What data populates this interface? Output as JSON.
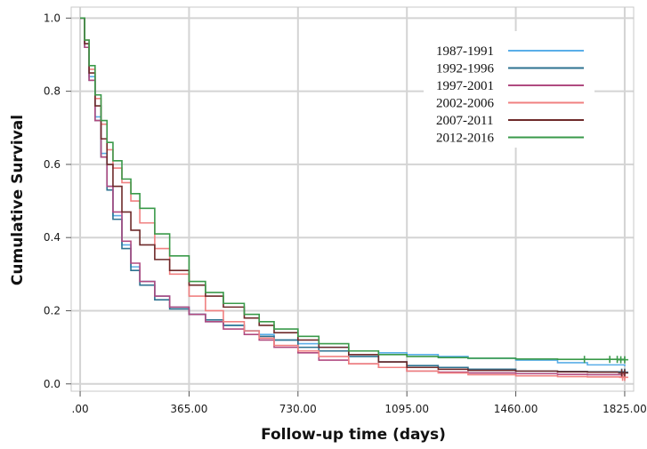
{
  "chart_data": {
    "type": "line",
    "xlabel": "Follow-up time (days)",
    "ylabel": "Cumulative Survival",
    "xlim": [
      -30,
      1855
    ],
    "ylim": [
      -0.02,
      1.03
    ],
    "x_ticks": [
      0,
      365,
      730,
      1095,
      1460,
      1825
    ],
    "x_tick_labels": [
      ".00",
      "365.00",
      "730.00",
      "1095.00",
      "1460.00",
      "1825.00"
    ],
    "y_ticks": [
      0.0,
      0.2,
      0.4,
      0.6,
      0.8,
      1.0
    ],
    "y_tick_labels": [
      "0.0",
      "0.2",
      "0.4",
      "0.6",
      "0.8",
      "1.0"
    ],
    "grid": true,
    "legend_position": "top-right",
    "series": [
      {
        "name": "1987-1991",
        "color": "#5aaee8",
        "x": [
          0,
          15,
          30,
          50,
          70,
          90,
          110,
          140,
          170,
          200,
          250,
          300,
          365,
          420,
          480,
          550,
          600,
          650,
          730,
          800,
          900,
          1000,
          1095,
          1200,
          1300,
          1460,
          1600,
          1700,
          1825
        ],
        "values": [
          1.0,
          0.93,
          0.84,
          0.73,
          0.63,
          0.54,
          0.46,
          0.38,
          0.32,
          0.28,
          0.24,
          0.21,
          0.19,
          0.17,
          0.16,
          0.145,
          0.135,
          0.12,
          0.11,
          0.1,
          0.09,
          0.085,
          0.08,
          0.075,
          0.07,
          0.065,
          0.058,
          0.052,
          0.048
        ]
      },
      {
        "name": "1992-1996",
        "color": "#2d7290",
        "x": [
          0,
          15,
          30,
          50,
          70,
          90,
          110,
          140,
          170,
          200,
          250,
          300,
          365,
          420,
          480,
          550,
          600,
          650,
          730,
          800,
          900,
          1000,
          1095,
          1200,
          1300,
          1460,
          1600,
          1700,
          1825
        ],
        "values": [
          1.0,
          0.92,
          0.83,
          0.72,
          0.62,
          0.53,
          0.45,
          0.37,
          0.31,
          0.27,
          0.23,
          0.205,
          0.19,
          0.175,
          0.16,
          0.145,
          0.13,
          0.12,
          0.1,
          0.09,
          0.075,
          0.06,
          0.05,
          0.045,
          0.04,
          0.035,
          0.034,
          0.033,
          0.032
        ]
      },
      {
        "name": "1997-2001",
        "color": "#b04a80",
        "x": [
          0,
          15,
          30,
          50,
          70,
          90,
          110,
          140,
          170,
          200,
          250,
          300,
          365,
          420,
          480,
          550,
          600,
          650,
          730,
          800,
          900,
          1000,
          1095,
          1200,
          1300,
          1460,
          1600,
          1700,
          1825
        ],
        "values": [
          1.0,
          0.92,
          0.83,
          0.72,
          0.62,
          0.54,
          0.47,
          0.39,
          0.33,
          0.28,
          0.24,
          0.21,
          0.19,
          0.17,
          0.15,
          0.135,
          0.12,
          0.1,
          0.085,
          0.065,
          0.055,
          0.045,
          0.035,
          0.032,
          0.03,
          0.028,
          0.026,
          0.025,
          0.025
        ]
      },
      {
        "name": "2002-2006",
        "color": "#f08080",
        "x": [
          0,
          15,
          30,
          50,
          70,
          90,
          110,
          140,
          170,
          200,
          250,
          300,
          365,
          420,
          480,
          550,
          600,
          650,
          730,
          800,
          900,
          1000,
          1095,
          1200,
          1300,
          1460,
          1600,
          1700,
          1825
        ],
        "values": [
          1.0,
          0.94,
          0.86,
          0.78,
          0.71,
          0.64,
          0.59,
          0.55,
          0.5,
          0.44,
          0.37,
          0.3,
          0.24,
          0.2,
          0.17,
          0.145,
          0.125,
          0.105,
          0.09,
          0.075,
          0.055,
          0.045,
          0.035,
          0.03,
          0.025,
          0.022,
          0.02,
          0.019,
          0.018
        ]
      },
      {
        "name": "2007-2011",
        "color": "#6e2a2a",
        "x": [
          0,
          15,
          30,
          50,
          70,
          90,
          110,
          140,
          170,
          200,
          250,
          300,
          365,
          420,
          480,
          550,
          600,
          650,
          730,
          800,
          900,
          1000,
          1095,
          1200,
          1300,
          1460,
          1600,
          1700,
          1825
        ],
        "values": [
          1.0,
          0.93,
          0.85,
          0.76,
          0.67,
          0.6,
          0.54,
          0.47,
          0.42,
          0.38,
          0.34,
          0.31,
          0.27,
          0.24,
          0.21,
          0.18,
          0.16,
          0.14,
          0.12,
          0.1,
          0.08,
          0.06,
          0.045,
          0.04,
          0.037,
          0.035,
          0.033,
          0.032,
          0.03
        ]
      },
      {
        "name": "2012-2016",
        "color": "#3a9a4a",
        "x": [
          0,
          15,
          30,
          50,
          70,
          90,
          110,
          140,
          170,
          200,
          250,
          300,
          365,
          420,
          480,
          550,
          600,
          650,
          730,
          800,
          900,
          1000,
          1095,
          1200,
          1300,
          1460,
          1600,
          1700,
          1825
        ],
        "values": [
          1.0,
          0.94,
          0.87,
          0.79,
          0.72,
          0.66,
          0.61,
          0.56,
          0.52,
          0.48,
          0.41,
          0.35,
          0.28,
          0.25,
          0.22,
          0.19,
          0.17,
          0.15,
          0.13,
          0.11,
          0.09,
          0.08,
          0.075,
          0.072,
          0.07,
          0.068,
          0.067,
          0.067,
          0.066
        ]
      }
    ],
    "censor_marks": [
      {
        "series": "1992-1996",
        "x": [
          1815,
          1825
        ],
        "values": [
          0.032,
          0.032
        ]
      },
      {
        "series": "2002-2006",
        "x": [
          1818,
          1825
        ],
        "values": [
          0.018,
          0.018
        ]
      },
      {
        "series": "2007-2011",
        "x": [
          1815,
          1825
        ],
        "values": [
          0.03,
          0.03
        ]
      },
      {
        "series": "2012-2016",
        "x": [
          1690,
          1775,
          1800,
          1812,
          1825
        ],
        "values": [
          0.067,
          0.067,
          0.067,
          0.066,
          0.066
        ]
      }
    ]
  }
}
